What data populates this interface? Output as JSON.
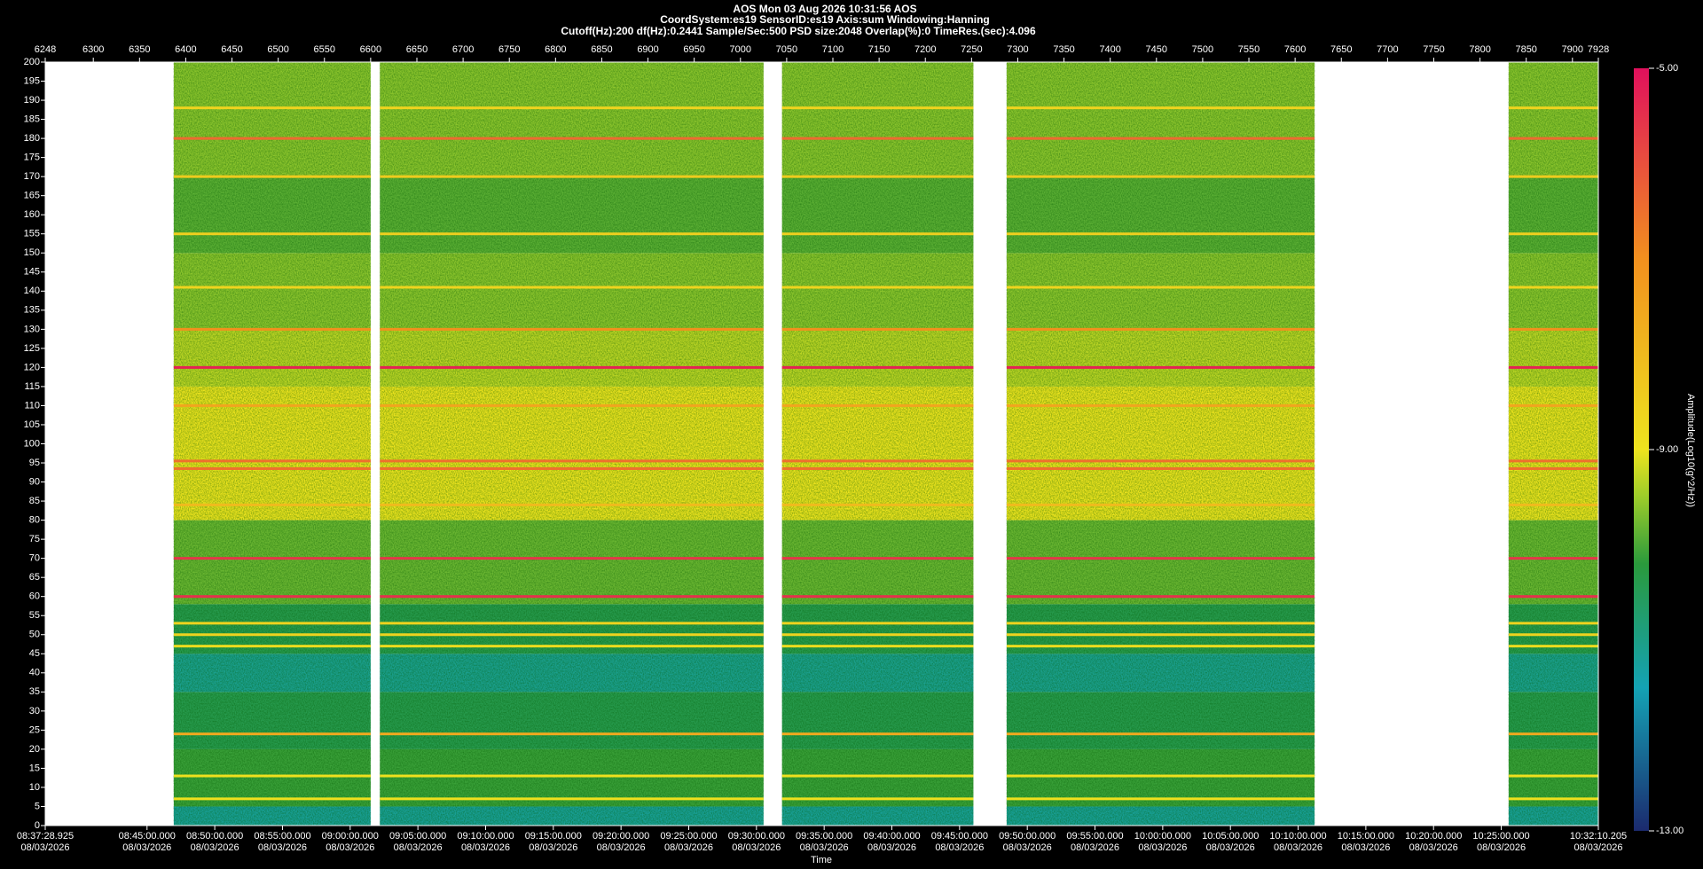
{
  "chart_data": {
    "type": "spectrogram",
    "title": "AOS  Mon 03 Aug 2026 10:31:56  AOS",
    "subtitle": "CoordSystem:es19   SensorID:es19   Axis:sum   Windowing:Hanning",
    "settings_line": "Cutoff(Hz):200    df(Hz):0.2441    Sample/Sec:500    PSD size:2048    Overlap(%):0    TimeRes.(sec):4.096",
    "xlabel": "Time",
    "colorbar_label": "Amplitude(Log10(g^2/Hz))",
    "xlim": [
      6248,
      7928
    ],
    "xticks": [
      6248,
      6300,
      6350,
      6400,
      6450,
      6500,
      6550,
      6600,
      6650,
      6700,
      6750,
      6800,
      6850,
      6900,
      6950,
      7000,
      7050,
      7100,
      7150,
      7200,
      7250,
      7300,
      7350,
      7400,
      7450,
      7500,
      7550,
      7600,
      7650,
      7700,
      7750,
      7800,
      7850,
      7900,
      7928
    ],
    "time_ticks": [
      {
        "value": 6248,
        "label": "08:37:28.925"
      },
      {
        "value": 6358.13,
        "label": "08:45:00.000"
      },
      {
        "value": 6431.37,
        "label": "08:50:00.000"
      },
      {
        "value": 6504.62,
        "label": "08:55:00.000"
      },
      {
        "value": 6577.86,
        "label": "09:00:00.000"
      },
      {
        "value": 6651.1,
        "label": "09:05:00.000"
      },
      {
        "value": 6724.35,
        "label": "09:10:00.000"
      },
      {
        "value": 6797.59,
        "label": "09:15:00.000"
      },
      {
        "value": 6870.83,
        "label": "09:20:00.000"
      },
      {
        "value": 6944.08,
        "label": "09:25:00.000"
      },
      {
        "value": 7017.32,
        "label": "09:30:00.000"
      },
      {
        "value": 7090.56,
        "label": "09:35:00.000"
      },
      {
        "value": 7163.81,
        "label": "09:40:00.000"
      },
      {
        "value": 7237.05,
        "label": "09:45:00.000"
      },
      {
        "value": 7310.29,
        "label": "09:50:00.000"
      },
      {
        "value": 7383.54,
        "label": "09:55:00.000"
      },
      {
        "value": 7456.78,
        "label": "10:00:00.000"
      },
      {
        "value": 7530.02,
        "label": "10:05:00.000"
      },
      {
        "value": 7603.26,
        "label": "10:10:00.000"
      },
      {
        "value": 7676.51,
        "label": "10:15:00.000"
      },
      {
        "value": 7749.75,
        "label": "10:20:00.000"
      },
      {
        "value": 7822.99,
        "label": "10:25:00.000"
      },
      {
        "value": 7928,
        "label": "10:32:10.205"
      }
    ],
    "time_tick_dates": [
      "08/03/2026",
      "08/03/2026",
      "08/03/2026",
      "08/03/2026",
      "08/03/2026",
      "08/03/2026",
      "08/03/2026",
      "08/03/2026",
      "08/03/2026",
      "08/03/2026",
      "08/03/2026",
      "08/03/2026",
      "08/03/2026",
      "08/03/2026",
      "08/03/2026",
      "08/03/2026",
      "08/03/2026",
      "08/03/2026",
      "08/03/2026",
      "08/03/2026",
      "08/03/2026",
      "08/03/2026",
      "08/03/2026"
    ],
    "ylim": [
      0,
      200
    ],
    "yticks": [
      0,
      5,
      10,
      15,
      20,
      25,
      30,
      35,
      40,
      45,
      50,
      55,
      60,
      65,
      70,
      75,
      80,
      85,
      90,
      95,
      100,
      105,
      110,
      115,
      120,
      125,
      130,
      135,
      140,
      145,
      150,
      155,
      160,
      165,
      170,
      175,
      180,
      185,
      190,
      195,
      200
    ],
    "clim": [
      -13,
      -5
    ],
    "cticks": [
      {
        "value": -13,
        "label": "-13.00"
      },
      {
        "value": -9,
        "label": "-9.00"
      },
      {
        "value": -5,
        "label": "-5.00"
      }
    ],
    "colorscale": [
      {
        "value": -13,
        "color": "#1b2a6e"
      },
      {
        "value": -11.5,
        "color": "#14a2b4"
      },
      {
        "value": -10.2,
        "color": "#2a9a3c"
      },
      {
        "value": -9.5,
        "color": "#9ccc2a"
      },
      {
        "value": -9,
        "color": "#eee41e"
      },
      {
        "value": -7,
        "color": "#f2901e"
      },
      {
        "value": -5,
        "color": "#e0105c"
      }
    ],
    "segments": [
      [
        6387,
        6600
      ],
      [
        6610,
        7025
      ],
      [
        7045,
        7252
      ],
      [
        7288,
        7621
      ],
      [
        7831,
        7928
      ]
    ],
    "bands": {
      "edges": [
        0,
        5,
        20,
        35,
        45,
        58,
        80,
        115,
        130,
        150,
        170,
        200
      ],
      "amplitudes": [
        -11.2,
        -10.1,
        -10.4,
        -11.1,
        -10.4,
        -9.8,
        -9.0,
        -9.3,
        -9.6,
        -9.9,
        -9.6
      ]
    },
    "tones": {
      "frequency": [
        120,
        60,
        70,
        180,
        130,
        93.5,
        95.5,
        110,
        24,
        84,
        50,
        53,
        47,
        155,
        170,
        188,
        141,
        13,
        7
      ],
      "amplitude": [
        -5.3,
        -5.5,
        -5.6,
        -6.4,
        -7.0,
        -6.5,
        -6.5,
        -7.5,
        -7.6,
        -8.0,
        -8.6,
        -8.6,
        -8.8,
        -8.5,
        -8.4,
        -8.6,
        -8.6,
        -8.9,
        -8.9
      ]
    }
  }
}
